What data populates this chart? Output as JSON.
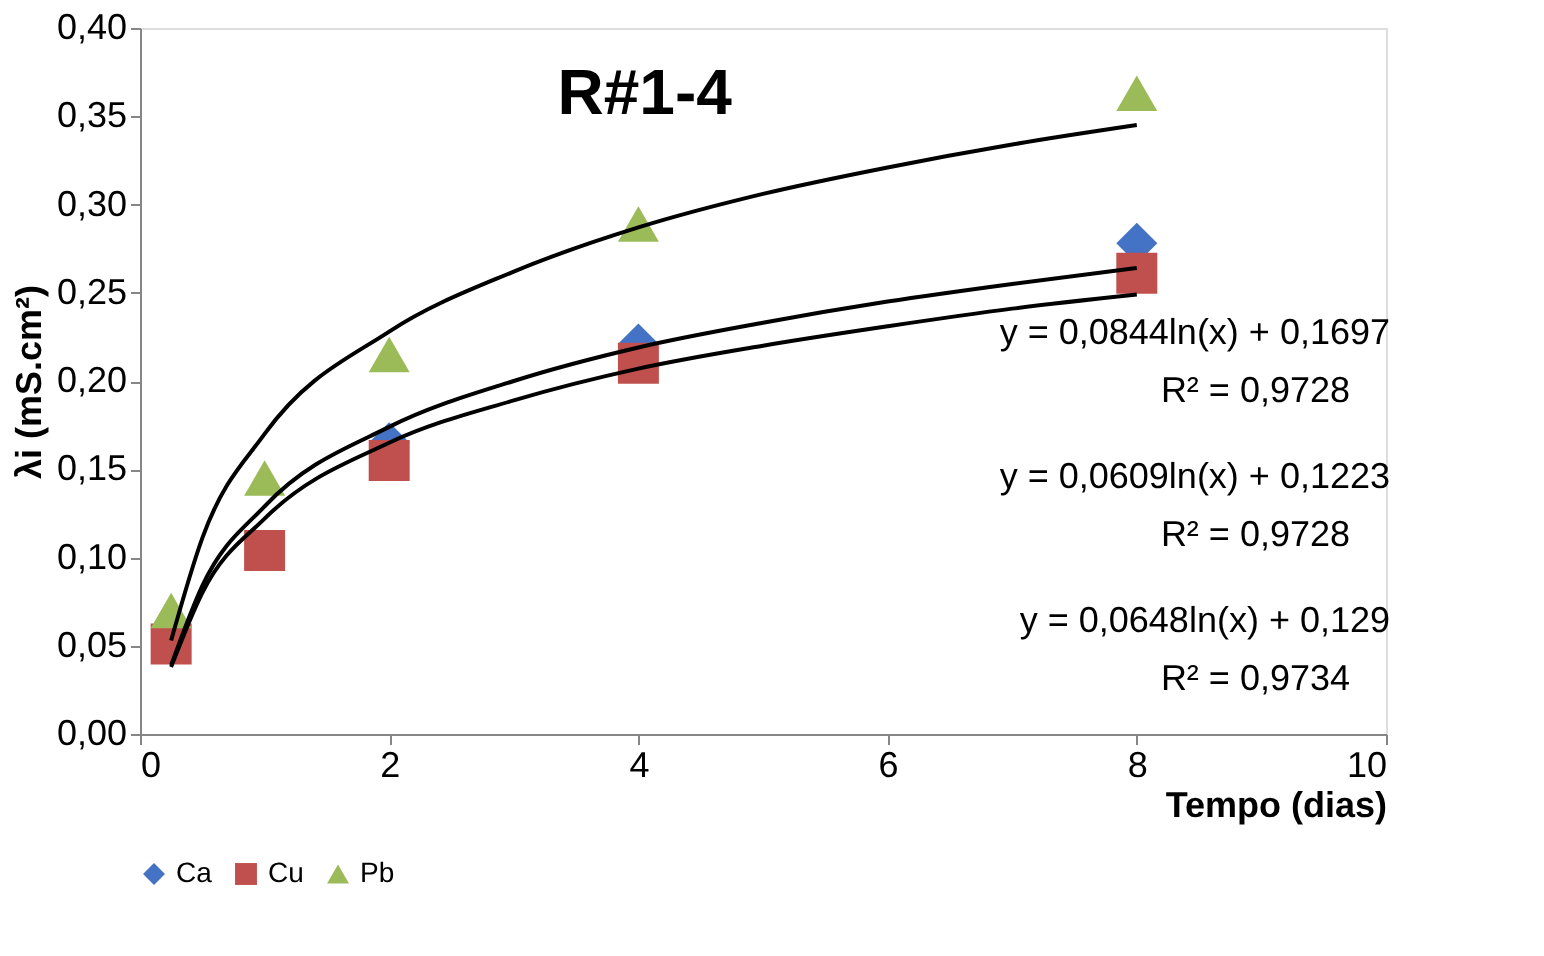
{
  "chart_data": {
    "type": "scatter",
    "title": "R#1-4",
    "xlabel": "Tempo (dias)",
    "ylabel": "λi (mS.cm²)",
    "x": [
      0.25,
      1,
      2,
      4,
      8
    ],
    "series": [
      {
        "name": "Ca",
        "color": "#4472c4",
        "marker": "diamond",
        "values": [
          null,
          null,
          0.165,
          0.221,
          0.278
        ]
      },
      {
        "name": "Cu",
        "color": "#c0504d",
        "marker": "square",
        "values": [
          0.051,
          0.104,
          0.155,
          0.21,
          0.261
        ]
      },
      {
        "name": "Pb",
        "color": "#9bbb59",
        "marker": "triangle",
        "values": [
          0.07,
          0.145,
          0.215,
          0.289,
          0.363
        ]
      },
      {
        "type": "line",
        "color": "#000000",
        "x": [
          0.25,
          0.5,
          1,
          2,
          3,
          4,
          5,
          6,
          7,
          8
        ],
        "values": [
          0.053,
          0.111,
          0.17,
          0.228,
          0.262,
          0.287,
          0.306,
          0.321,
          0.334,
          0.345
        ]
      },
      {
        "type": "line",
        "color": "#000000",
        "x": [
          0.25,
          0.5,
          1,
          2,
          3,
          4,
          5,
          6,
          7,
          8
        ],
        "values": [
          0.038,
          0.08,
          0.122,
          0.165,
          0.189,
          0.207,
          0.22,
          0.231,
          0.241,
          0.249
        ]
      },
      {
        "type": "line",
        "color": "#000000",
        "x": [
          0.25,
          0.5,
          1,
          2,
          3,
          4,
          5,
          6,
          7,
          8
        ],
        "values": [
          0.039,
          0.084,
          0.129,
          0.174,
          0.2,
          0.219,
          0.233,
          0.245,
          0.255,
          0.264
        ]
      }
    ],
    "xlim": [
      0,
      10
    ],
    "xticks": [
      0,
      2,
      4,
      6,
      8,
      10
    ],
    "ylim": [
      0,
      0.4
    ],
    "yticks": [
      {
        "value": 0,
        "label": "0,00"
      },
      {
        "value": 0.05,
        "label": "0,05"
      },
      {
        "value": 0.1,
        "label": "0,10"
      },
      {
        "value": 0.15,
        "label": "0,15"
      },
      {
        "value": 0.2,
        "label": "0,20"
      },
      {
        "value": 0.25,
        "label": "0,25"
      },
      {
        "value": 0.3,
        "label": "0,30"
      },
      {
        "value": 0.35,
        "label": "0,35"
      },
      {
        "value": 0.4,
        "label": "0,40"
      }
    ],
    "annotations": [
      "y = 0,0844ln(x) + 0,1697",
      "R² = 0,9728",
      "y = 0,0609ln(x) + 0,1223",
      "R² = 0,9728",
      "y = 0,0648ln(x) + 0,129",
      "R² = 0,9734"
    ],
    "grid": false,
    "legend": "bottom"
  }
}
